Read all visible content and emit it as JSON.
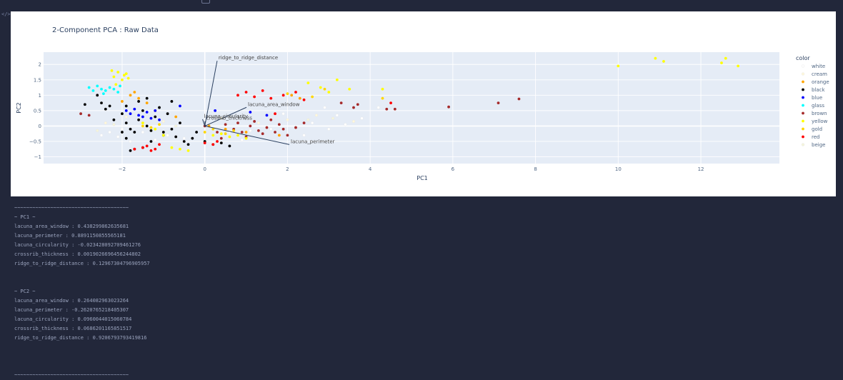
{
  "chart_data": {
    "type": "scatter",
    "title": "2-Component PCA : Raw Data",
    "xlabel": "PC1",
    "ylabel": "PC2",
    "xlim": [
      -3.9,
      13.9
    ],
    "ylim": [
      -1.22,
      2.4
    ],
    "xticks": [
      -2,
      0,
      2,
      4,
      6,
      8,
      10,
      12
    ],
    "yticks": [
      -1,
      -0.5,
      0,
      0.5,
      1,
      1.5,
      2
    ],
    "ytick_labels": [
      "−1",
      "−0.5",
      "0",
      "0.5",
      "1",
      "1.5",
      "2"
    ],
    "xtick_labels": [
      "−2",
      "0",
      "2",
      "4",
      "6",
      "8",
      "10",
      "12"
    ],
    "grid": true,
    "legend": {
      "title": "color",
      "position": "right"
    },
    "series": [
      {
        "name": "white",
        "color": "#ffffff"
      },
      {
        "name": "cream",
        "color": "#fff8dc"
      },
      {
        "name": "orange",
        "color": "#ffa500"
      },
      {
        "name": "black",
        "color": "#000000"
      },
      {
        "name": "blue",
        "color": "#0000ff"
      },
      {
        "name": "glass",
        "color": "#00ffff"
      },
      {
        "name": "brown",
        "color": "#a52a2a"
      },
      {
        "name": "yellow",
        "color": "#ffff00"
      },
      {
        "name": "gold",
        "color": "#ffd700"
      },
      {
        "name": "red",
        "color": "#ff0000"
      },
      {
        "name": "beige",
        "color": "#f5f5dc"
      }
    ],
    "points": {
      "white": [
        [
          -2.3,
          -0.2
        ],
        [
          -2.1,
          -0.35
        ],
        [
          -1.8,
          -0.5
        ],
        [
          -1.5,
          -0.2
        ],
        [
          -1.2,
          -0.45
        ],
        [
          -0.9,
          -0.3
        ],
        [
          -0.5,
          -0.4
        ],
        [
          0.2,
          -0.55
        ],
        [
          0.6,
          -0.2
        ],
        [
          1.1,
          -0.15
        ],
        [
          1.6,
          -0.1
        ],
        [
          2.2,
          -0.05
        ],
        [
          2.6,
          0.1
        ],
        [
          3.0,
          -0.1
        ],
        [
          3.4,
          0.05
        ],
        [
          3.8,
          0.25
        ],
        [
          3.2,
          0.35
        ],
        [
          2.9,
          0.6
        ],
        [
          1.9,
          0.4
        ],
        [
          4.2,
          0.6
        ],
        [
          -2.5,
          -0.3
        ],
        [
          -2.0,
          -0.1
        ],
        [
          0.9,
          -0.45
        ],
        [
          2.4,
          -0.3
        ]
      ],
      "cream": [
        [
          -2.4,
          0.1
        ],
        [
          -1.9,
          0.3
        ],
        [
          -1.0,
          0.15
        ],
        [
          0.4,
          0.25
        ],
        [
          1.3,
          0.1
        ],
        [
          2.0,
          0.2
        ],
        [
          2.7,
          0.35
        ],
        [
          3.6,
          0.15
        ]
      ],
      "orange": [
        [
          -1.8,
          1.0
        ],
        [
          -1.6,
          0.9
        ],
        [
          -1.4,
          0.75
        ],
        [
          -1.2,
          0.5
        ],
        [
          -0.7,
          0.3
        ],
        [
          0.1,
          0.0
        ],
        [
          0.5,
          -0.1
        ],
        [
          1.0,
          -0.2
        ],
        [
          1.8,
          -0.3
        ],
        [
          2.1,
          1.0
        ],
        [
          2.3,
          0.9
        ],
        [
          -2.0,
          0.8
        ],
        [
          -1.7,
          1.1
        ]
      ],
      "black": [
        [
          -2.9,
          0.7
        ],
        [
          -2.6,
          1.0
        ],
        [
          -2.5,
          0.75
        ],
        [
          -2.3,
          0.65
        ],
        [
          -2.0,
          0.4
        ],
        [
          -1.9,
          0.1
        ],
        [
          -1.8,
          -0.1
        ],
        [
          -1.7,
          -0.2
        ],
        [
          -1.6,
          0.2
        ],
        [
          -1.5,
          0.5
        ],
        [
          -1.4,
          0.0
        ],
        [
          -1.3,
          -0.15
        ],
        [
          -1.2,
          0.3
        ],
        [
          -1.1,
          0.6
        ],
        [
          -1.0,
          -0.2
        ],
        [
          -0.9,
          0.4
        ],
        [
          -0.8,
          0.8
        ],
        [
          -0.7,
          -0.35
        ],
        [
          -0.6,
          0.1
        ],
        [
          -0.5,
          -0.5
        ],
        [
          -0.4,
          -0.6
        ],
        [
          -0.3,
          -0.4
        ],
        [
          -0.2,
          -0.2
        ],
        [
          0.0,
          -0.5
        ],
        [
          0.2,
          -0.6
        ],
        [
          0.4,
          -0.55
        ],
        [
          0.6,
          -0.65
        ],
        [
          -2.2,
          0.2
        ],
        [
          -2.0,
          -0.2
        ],
        [
          -1.9,
          -0.4
        ],
        [
          -1.8,
          -0.8
        ],
        [
          -1.7,
          -0.75
        ],
        [
          -1.5,
          -0.7
        ],
        [
          -1.3,
          -0.5
        ],
        [
          -1.0,
          -0.3
        ],
        [
          -0.8,
          -0.1
        ],
        [
          -1.6,
          0.8
        ],
        [
          -1.4,
          0.9
        ],
        [
          -2.4,
          0.55
        ],
        [
          -1.9,
          0.65
        ]
      ],
      "blue": [
        [
          -1.9,
          0.5
        ],
        [
          -1.8,
          0.4
        ],
        [
          -1.7,
          0.55
        ],
        [
          -1.6,
          0.35
        ],
        [
          -1.5,
          0.3
        ],
        [
          -1.4,
          0.45
        ],
        [
          -1.3,
          0.25
        ],
        [
          -1.2,
          0.5
        ],
        [
          -1.1,
          0.2
        ],
        [
          -0.6,
          0.65
        ],
        [
          0.25,
          0.5
        ],
        [
          1.1,
          0.45
        ],
        [
          1.5,
          0.35
        ]
      ],
      "glass": [
        [
          -2.8,
          1.25
        ],
        [
          -2.7,
          1.15
        ],
        [
          -2.6,
          1.3
        ],
        [
          -2.5,
          1.2
        ],
        [
          -2.4,
          1.15
        ],
        [
          -2.3,
          1.25
        ],
        [
          -2.2,
          1.2
        ],
        [
          -2.1,
          1.1
        ],
        [
          -2.05,
          1.3
        ],
        [
          -2.45,
          1.05
        ]
      ],
      "brown": [
        [
          -3.0,
          0.4
        ],
        [
          -2.8,
          0.35
        ],
        [
          0.0,
          0.0
        ],
        [
          0.3,
          -0.2
        ],
        [
          0.5,
          0.05
        ],
        [
          0.7,
          -0.1
        ],
        [
          0.9,
          -0.2
        ],
        [
          1.1,
          0.0
        ],
        [
          1.3,
          -0.15
        ],
        [
          1.5,
          -0.05
        ],
        [
          1.7,
          -0.2
        ],
        [
          1.9,
          -0.1
        ],
        [
          2.0,
          -0.3
        ],
        [
          2.2,
          -0.05
        ],
        [
          0.8,
          0.1
        ],
        [
          1.2,
          0.15
        ],
        [
          1.6,
          0.2
        ],
        [
          3.3,
          0.75
        ],
        [
          3.6,
          0.6
        ],
        [
          3.7,
          0.7
        ],
        [
          4.4,
          0.55
        ],
        [
          4.6,
          0.55
        ],
        [
          5.9,
          0.62
        ],
        [
          7.1,
          0.75
        ],
        [
          7.6,
          0.88
        ],
        [
          1.0,
          -0.35
        ],
        [
          0.4,
          -0.4
        ],
        [
          1.4,
          -0.25
        ],
        [
          1.8,
          0.05
        ],
        [
          2.4,
          0.1
        ]
      ],
      "yellow": [
        [
          -2.25,
          1.8
        ],
        [
          -2.2,
          1.6
        ],
        [
          -2.1,
          1.75
        ],
        [
          -2.0,
          1.5
        ],
        [
          -1.95,
          1.65
        ],
        [
          -1.9,
          1.7
        ],
        [
          -1.85,
          1.55
        ],
        [
          -2.15,
          1.35
        ],
        [
          -1.5,
          0.1
        ],
        [
          -1.2,
          -0.1
        ],
        [
          -1.0,
          -0.3
        ],
        [
          -0.8,
          -0.7
        ],
        [
          -0.6,
          -0.75
        ],
        [
          -0.4,
          -0.8
        ],
        [
          0.2,
          -0.3
        ],
        [
          0.4,
          -0.25
        ],
        [
          0.6,
          -0.35
        ],
        [
          0.8,
          -0.3
        ],
        [
          1.0,
          -0.4
        ],
        [
          2.5,
          1.4
        ],
        [
          2.8,
          1.25
        ],
        [
          3.0,
          1.1
        ],
        [
          3.2,
          1.5
        ],
        [
          3.5,
          1.2
        ],
        [
          4.3,
          1.2
        ],
        [
          10.0,
          1.95
        ],
        [
          10.9,
          2.2
        ],
        [
          11.1,
          2.1
        ],
        [
          12.5,
          2.05
        ],
        [
          12.6,
          2.2
        ],
        [
          12.9,
          1.95
        ]
      ],
      "gold": [
        [
          -1.5,
          0.0
        ],
        [
          -1.3,
          -0.05
        ],
        [
          -1.1,
          0.05
        ],
        [
          0.0,
          -0.2
        ],
        [
          0.2,
          -0.1
        ],
        [
          0.5,
          -0.25
        ],
        [
          0.7,
          -0.15
        ],
        [
          2.0,
          1.05
        ],
        [
          2.6,
          0.95
        ],
        [
          2.9,
          1.2
        ],
        [
          4.3,
          0.9
        ]
      ],
      "red": [
        [
          -1.7,
          -0.75
        ],
        [
          -1.5,
          -0.7
        ],
        [
          -1.4,
          -0.65
        ],
        [
          -1.3,
          -0.8
        ],
        [
          -1.2,
          -0.75
        ],
        [
          -1.1,
          -0.6
        ],
        [
          0.0,
          -0.55
        ],
        [
          0.2,
          -0.6
        ],
        [
          0.3,
          -0.5
        ],
        [
          0.8,
          1.0
        ],
        [
          1.0,
          1.1
        ],
        [
          1.2,
          0.95
        ],
        [
          1.4,
          1.15
        ],
        [
          1.6,
          0.9
        ],
        [
          1.9,
          1.0
        ],
        [
          2.2,
          1.1
        ],
        [
          2.4,
          0.85
        ],
        [
          1.7,
          0.4
        ],
        [
          4.5,
          0.75
        ]
      ],
      "beige": [
        [
          -2.6,
          -0.15
        ],
        [
          -2.2,
          0.05
        ],
        [
          -0.7,
          0.0
        ],
        [
          2.5,
          0.2
        ],
        [
          3.1,
          0.25
        ]
      ]
    },
    "loadings": [
      {
        "label": "lacuna_area_window",
        "x": 0.438299862635681,
        "y": 0.264082963023264
      },
      {
        "label": "lacuna_perimeter",
        "x": 0.8891150855565181,
        "y": -0.2620765218405307
      },
      {
        "label": "lacuna_circularity",
        "x": -0.023428092709461276,
        "y": 0.0960044015060784
      },
      {
        "label": "crossrib_thickness",
        "x": 0.0019026696456244802,
        "y": 0.0686201165851517
      },
      {
        "label": "ridge_to_ridge_distance",
        "x": 0.12967304796905957,
        "y": 0.9206793793419816
      }
    ]
  },
  "output": {
    "separator": "~~~~~~~~~~~~~~~~~~~~~~~~~~~~~~~~~~~~~~",
    "pc1_heading": "~ PC1 ~",
    "pc1_lines": [
      "lacuna_area_window : 0.438299862635681",
      "lacuna_perimeter : 0.8891150855565181",
      "lacuna_circularity : -0.023428092709461276",
      "crossrib_thickness : 0.0019026696456244802",
      "ridge_to_ridge_distance : 0.12967304796905957"
    ],
    "pc2_heading": "~ PC2 ~",
    "pc2_lines": [
      "lacuna_area_window : 0.264082963023264",
      "lacuna_perimeter : -0.2620765218405307",
      "lacuna_circularity : 0.0960044015060784",
      "crossrib_thickness : 0.0686201165851517",
      "ridge_to_ridge_distance : 0.9206793793419816"
    ]
  }
}
